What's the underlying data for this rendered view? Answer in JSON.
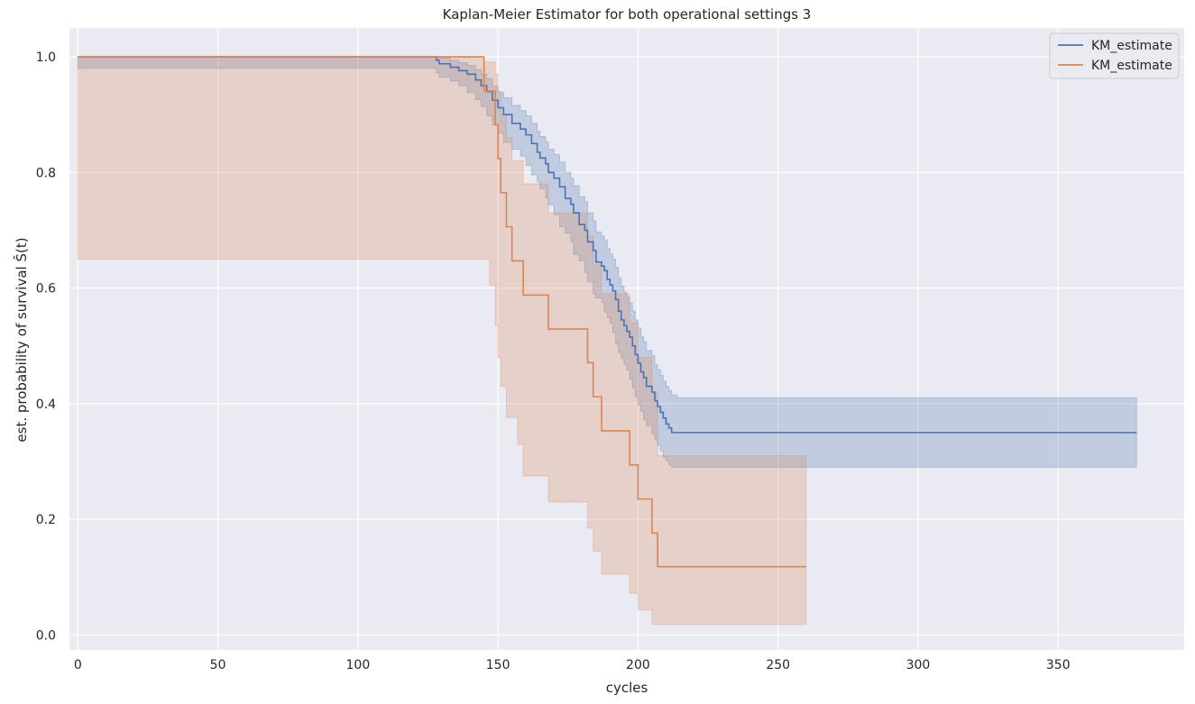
{
  "chart_data": {
    "type": "line",
    "subtype": "step",
    "title": "Kaplan-Meier Estimator for both operational settings 3",
    "xlabel": "cycles",
    "ylabel": "est. probability of survival Ŝ(t)",
    "xlim": [
      -3,
      395
    ],
    "ylim": [
      -0.026,
      1.05
    ],
    "xticks": [
      0,
      50,
      100,
      150,
      200,
      250,
      300,
      350
    ],
    "yticks": [
      0.0,
      0.2,
      0.4,
      0.6,
      0.8,
      1.0
    ],
    "xtick_labels": [
      "0",
      "50",
      "100",
      "150",
      "200",
      "250",
      "300",
      "350"
    ],
    "ytick_labels": [
      "0.0",
      "0.2",
      "0.4",
      "0.6",
      "0.8",
      "1.0"
    ],
    "grid": true,
    "legend_position": "top-right",
    "series": [
      {
        "name": "KM_estimate",
        "color": "#4c72b0",
        "x": [
          0,
          128,
          129,
          133,
          136,
          139,
          142,
          144,
          146,
          148,
          150,
          152,
          155,
          158,
          160,
          162,
          164,
          165,
          167,
          168,
          170,
          172,
          174,
          176,
          177,
          179,
          181,
          182,
          184,
          185,
          187,
          188,
          189,
          190,
          191,
          192,
          193,
          194,
          195,
          196,
          197,
          198,
          199,
          200,
          201,
          202,
          203,
          205,
          206,
          207,
          208,
          209,
          210,
          211,
          212,
          214,
          378
        ],
        "y": [
          1.0,
          0.994,
          0.988,
          0.982,
          0.976,
          0.97,
          0.96,
          0.95,
          0.94,
          0.925,
          0.912,
          0.9,
          0.885,
          0.875,
          0.865,
          0.85,
          0.835,
          0.825,
          0.815,
          0.8,
          0.79,
          0.775,
          0.755,
          0.745,
          0.73,
          0.71,
          0.7,
          0.68,
          0.665,
          0.645,
          0.638,
          0.63,
          0.615,
          0.605,
          0.595,
          0.58,
          0.56,
          0.545,
          0.535,
          0.525,
          0.515,
          0.5,
          0.485,
          0.47,
          0.455,
          0.445,
          0.43,
          0.42,
          0.405,
          0.395,
          0.385,
          0.375,
          0.365,
          0.358,
          0.35,
          0.35,
          0.35
        ],
        "ci_lower": [
          1.0,
          0.98,
          0.972,
          0.965,
          0.958,
          0.95,
          0.938,
          0.926,
          0.914,
          0.898,
          0.882,
          0.868,
          0.852,
          0.84,
          0.828,
          0.812,
          0.796,
          0.784,
          0.772,
          0.756,
          0.744,
          0.727,
          0.706,
          0.695,
          0.68,
          0.658,
          0.647,
          0.627,
          0.611,
          0.59,
          0.583,
          0.575,
          0.559,
          0.549,
          0.539,
          0.523,
          0.503,
          0.488,
          0.478,
          0.468,
          0.458,
          0.442,
          0.427,
          0.412,
          0.397,
          0.387,
          0.372,
          0.362,
          0.348,
          0.338,
          0.328,
          0.318,
          0.308,
          0.301,
          0.294,
          0.29,
          0.29
        ],
        "ci_upper": [
          1.0,
          1.0,
          0.998,
          0.994,
          0.99,
          0.985,
          0.978,
          0.97,
          0.962,
          0.95,
          0.939,
          0.929,
          0.916,
          0.907,
          0.898,
          0.885,
          0.871,
          0.862,
          0.853,
          0.84,
          0.831,
          0.818,
          0.8,
          0.79,
          0.777,
          0.758,
          0.749,
          0.73,
          0.716,
          0.697,
          0.69,
          0.683,
          0.669,
          0.659,
          0.65,
          0.636,
          0.617,
          0.603,
          0.593,
          0.584,
          0.574,
          0.56,
          0.545,
          0.531,
          0.516,
          0.507,
          0.492,
          0.483,
          0.468,
          0.459,
          0.449,
          0.439,
          0.43,
          0.423,
          0.415,
          0.41,
          0.41
        ]
      },
      {
        "name": "KM_estimate",
        "color": "#dd8452",
        "x": [
          0,
          145,
          147,
          149,
          150,
          151,
          153,
          155,
          157,
          159,
          168,
          182,
          184,
          187,
          197,
          200,
          205,
          207,
          260
        ],
        "y": [
          1.0,
          0.941,
          0.941,
          0.882,
          0.824,
          0.765,
          0.706,
          0.647,
          0.647,
          0.588,
          0.529,
          0.471,
          0.412,
          0.353,
          0.294,
          0.235,
          0.176,
          0.118,
          0.118
        ],
        "ci_lower": [
          1.0,
          0.65,
          0.65,
          0.605,
          0.535,
          0.48,
          0.43,
          0.376,
          0.376,
          0.33,
          0.275,
          0.23,
          0.185,
          0.145,
          0.105,
          0.072,
          0.043,
          0.018,
          0.018
        ],
        "ci_upper": [
          1.0,
          0.991,
          0.991,
          0.97,
          0.94,
          0.9,
          0.86,
          0.82,
          0.82,
          0.78,
          0.73,
          0.69,
          0.64,
          0.59,
          0.54,
          0.48,
          0.42,
          0.31,
          0.31
        ]
      }
    ]
  }
}
